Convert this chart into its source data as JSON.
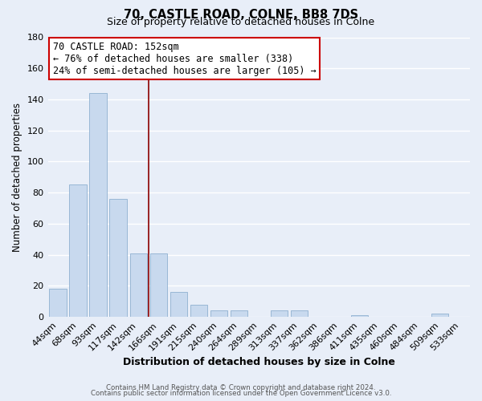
{
  "title": "70, CASTLE ROAD, COLNE, BB8 7DS",
  "subtitle": "Size of property relative to detached houses in Colne",
  "xlabel": "Distribution of detached houses by size in Colne",
  "ylabel": "Number of detached properties",
  "bar_labels": [
    "44sqm",
    "68sqm",
    "93sqm",
    "117sqm",
    "142sqm",
    "166sqm",
    "191sqm",
    "215sqm",
    "240sqm",
    "264sqm",
    "289sqm",
    "313sqm",
    "337sqm",
    "362sqm",
    "386sqm",
    "411sqm",
    "435sqm",
    "460sqm",
    "484sqm",
    "509sqm",
    "533sqm"
  ],
  "bar_values": [
    18,
    85,
    144,
    76,
    41,
    41,
    16,
    8,
    4,
    4,
    0,
    4,
    4,
    0,
    0,
    1,
    0,
    0,
    0,
    2,
    0
  ],
  "bar_color": "#c8d9ee",
  "bar_edge_color": "#8fb0d0",
  "vline_x": 4.5,
  "vline_color": "#8b0000",
  "annotation_title": "70 CASTLE ROAD: 152sqm",
  "annotation_line1": "← 76% of detached houses are smaller (338)",
  "annotation_line2": "24% of semi-detached houses are larger (105) →",
  "annotation_box_color": "#ffffff",
  "annotation_box_edge": "#cc0000",
  "ylim": [
    0,
    180
  ],
  "yticks": [
    0,
    20,
    40,
    60,
    80,
    100,
    120,
    140,
    160,
    180
  ],
  "grid_color": "#d0d8e8",
  "footer_line1": "Contains HM Land Registry data © Crown copyright and database right 2024.",
  "footer_line2": "Contains public sector information licensed under the Open Government Licence v3.0.",
  "bg_color": "#e8eef8",
  "plot_bg_color": "#e8eef8"
}
